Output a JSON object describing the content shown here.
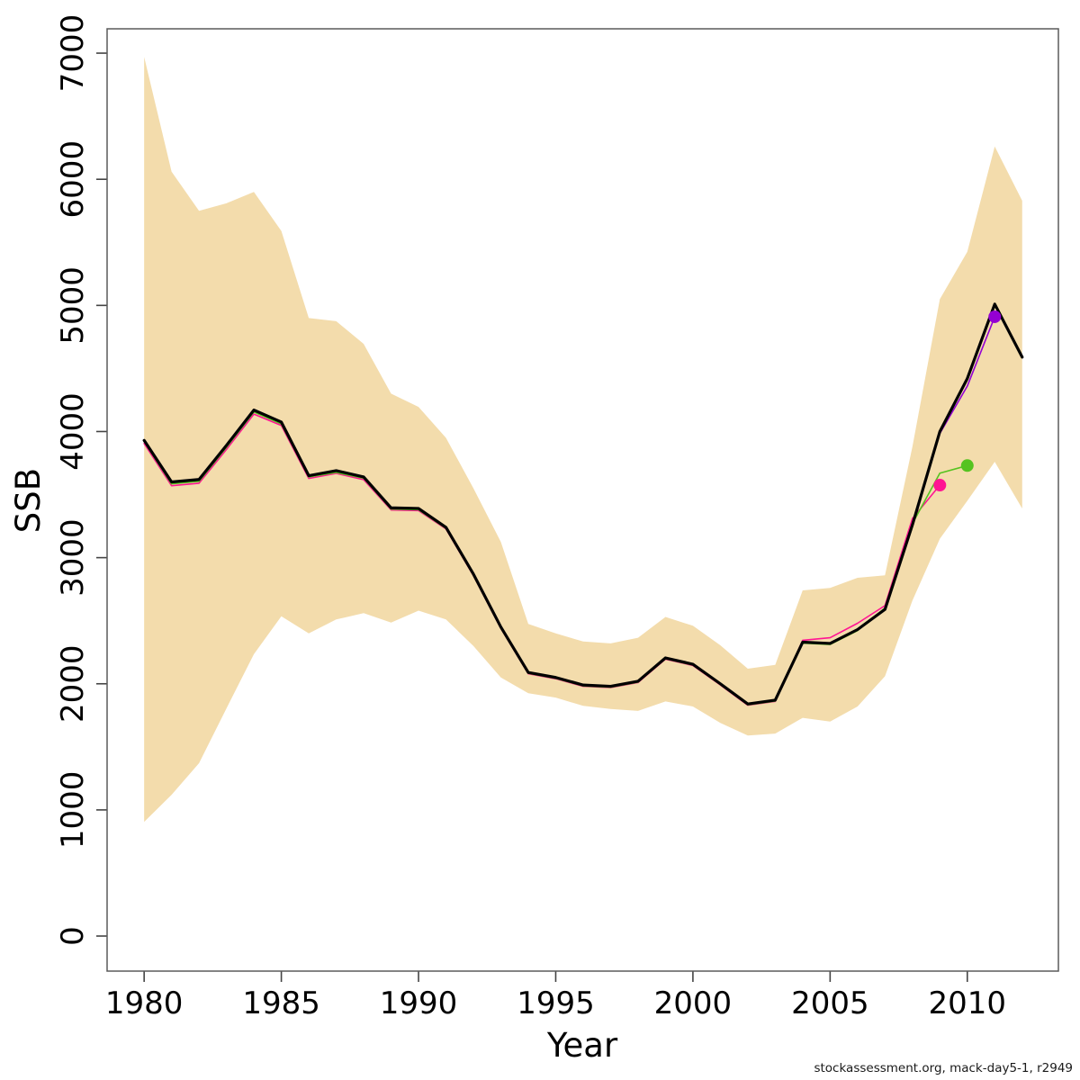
{
  "footer": {
    "credit": "stockassessment.org, mack-day5-1, r2949"
  },
  "chart_data": {
    "type": "line",
    "title": "",
    "xlabel": "Year",
    "ylabel": "SSB",
    "xlim": [
      1978.65,
      2013.32
    ],
    "ylim": [
      -278,
      7193
    ],
    "x_ticks": [
      1980,
      1985,
      1990,
      1995,
      2000,
      2005,
      2010
    ],
    "y_ticks": [
      0,
      1000,
      2000,
      3000,
      4000,
      5000,
      6000,
      7000
    ],
    "grid": false,
    "legend_position": "none",
    "band": {
      "name": "confidence-interval-band",
      "color": "#F3DCAC",
      "years": [
        1980,
        1981,
        1982,
        1983,
        1984,
        1985,
        1986,
        1987,
        1988,
        1989,
        1990,
        1991,
        1992,
        1993,
        1994,
        1995,
        1996,
        1997,
        1998,
        1999,
        2000,
        2001,
        2002,
        2003,
        2004,
        2005,
        2006,
        2007,
        2008,
        2009,
        2010,
        2011,
        2012
      ],
      "upper": [
        6970,
        6060,
        5750,
        5810,
        5900,
        5590,
        4900,
        4875,
        4695,
        4300,
        4195,
        3950,
        3550,
        3125,
        2475,
        2400,
        2335,
        2320,
        2365,
        2530,
        2460,
        2305,
        2120,
        2150,
        2740,
        2760,
        2840,
        2860,
        3880,
        5050,
        5425,
        6260,
        5830
      ],
      "lower": [
        905,
        1120,
        1370,
        1805,
        2235,
        2535,
        2400,
        2510,
        2560,
        2485,
        2580,
        2510,
        2300,
        2050,
        1925,
        1890,
        1825,
        1800,
        1785,
        1860,
        1820,
        1690,
        1590,
        1605,
        1730,
        1700,
        1820,
        2060,
        2660,
        3150,
        3450,
        3760,
        3390
      ]
    },
    "series": [
      {
        "name": "retro-run-2009",
        "color": "#FF1493",
        "width": 1.6,
        "end_dot": true,
        "years": [
          1980,
          1981,
          1982,
          1983,
          1984,
          1985,
          1986,
          1987,
          1988,
          1989,
          1990,
          1991,
          1992,
          1993,
          1994,
          1995,
          1996,
          1997,
          1998,
          1999,
          2000,
          2001,
          2002,
          2003,
          2004,
          2005,
          2006,
          2007,
          2008,
          2009
        ],
        "values": [
          3905,
          3570,
          3590,
          3858,
          4138,
          4048,
          3628,
          3668,
          3618,
          3378,
          3373,
          3228,
          2858,
          2440,
          2080,
          2040,
          1980,
          1970,
          2010,
          2195,
          2145,
          1990,
          1830,
          1860,
          2345,
          2365,
          2480,
          2620,
          3310,
          3575
        ]
      },
      {
        "name": "retro-run-2010",
        "color": "#55C320",
        "width": 1.6,
        "end_dot": true,
        "years": [
          1980,
          1981,
          1982,
          1983,
          1984,
          1985,
          1986,
          1987,
          1988,
          1989,
          1990,
          1991,
          1992,
          1993,
          1994,
          1995,
          1996,
          1997,
          1998,
          1999,
          2000,
          2001,
          2002,
          2003,
          2004,
          2005,
          2006,
          2007,
          2008,
          2009,
          2010
        ],
        "values": [
          3920,
          3585,
          3605,
          3875,
          4155,
          4060,
          3640,
          3675,
          3630,
          3385,
          3380,
          3232,
          2862,
          2443,
          2083,
          2043,
          1983,
          1973,
          2013,
          2198,
          2148,
          1993,
          1833,
          1863,
          2322,
          2312,
          2422,
          2600,
          3270,
          3670,
          3730
        ]
      },
      {
        "name": "retro-run-2011",
        "color": "#9400D3",
        "width": 1.6,
        "end_dot": true,
        "years": [
          1980,
          1981,
          1982,
          1983,
          1984,
          1985,
          1986,
          1987,
          1988,
          1989,
          1990,
          1991,
          1992,
          1993,
          1994,
          1995,
          1996,
          1997,
          1998,
          1999,
          2000,
          2001,
          2002,
          2003,
          2004,
          2005,
          2006,
          2007,
          2008,
          2009,
          2010,
          2011
        ],
        "values": [
          3930,
          3600,
          3620,
          3890,
          4170,
          4075,
          3650,
          3690,
          3640,
          3395,
          3390,
          3240,
          2870,
          2450,
          2090,
          2050,
          1990,
          1980,
          2020,
          2205,
          2155,
          2000,
          1840,
          1870,
          2330,
          2320,
          2430,
          2595,
          3265,
          3985,
          4360,
          4910
        ]
      },
      {
        "name": "final-assessment-run",
        "color": "#000000",
        "width": 3.2,
        "end_dot": false,
        "years": [
          1980,
          1981,
          1982,
          1983,
          1984,
          1985,
          1986,
          1987,
          1988,
          1989,
          1990,
          1991,
          1992,
          1993,
          1994,
          1995,
          1996,
          1997,
          1998,
          1999,
          2000,
          2001,
          2002,
          2003,
          2004,
          2005,
          2006,
          2007,
          2008,
          2009,
          2010,
          2011,
          2012
        ],
        "values": [
          3930,
          3600,
          3620,
          3890,
          4170,
          4075,
          3650,
          3690,
          3640,
          3395,
          3390,
          3240,
          2870,
          2450,
          2090,
          2050,
          1990,
          1980,
          2020,
          2205,
          2155,
          2000,
          1840,
          1870,
          2330,
          2320,
          2430,
          2590,
          3260,
          4000,
          4420,
          5010,
          4590
        ]
      }
    ]
  }
}
